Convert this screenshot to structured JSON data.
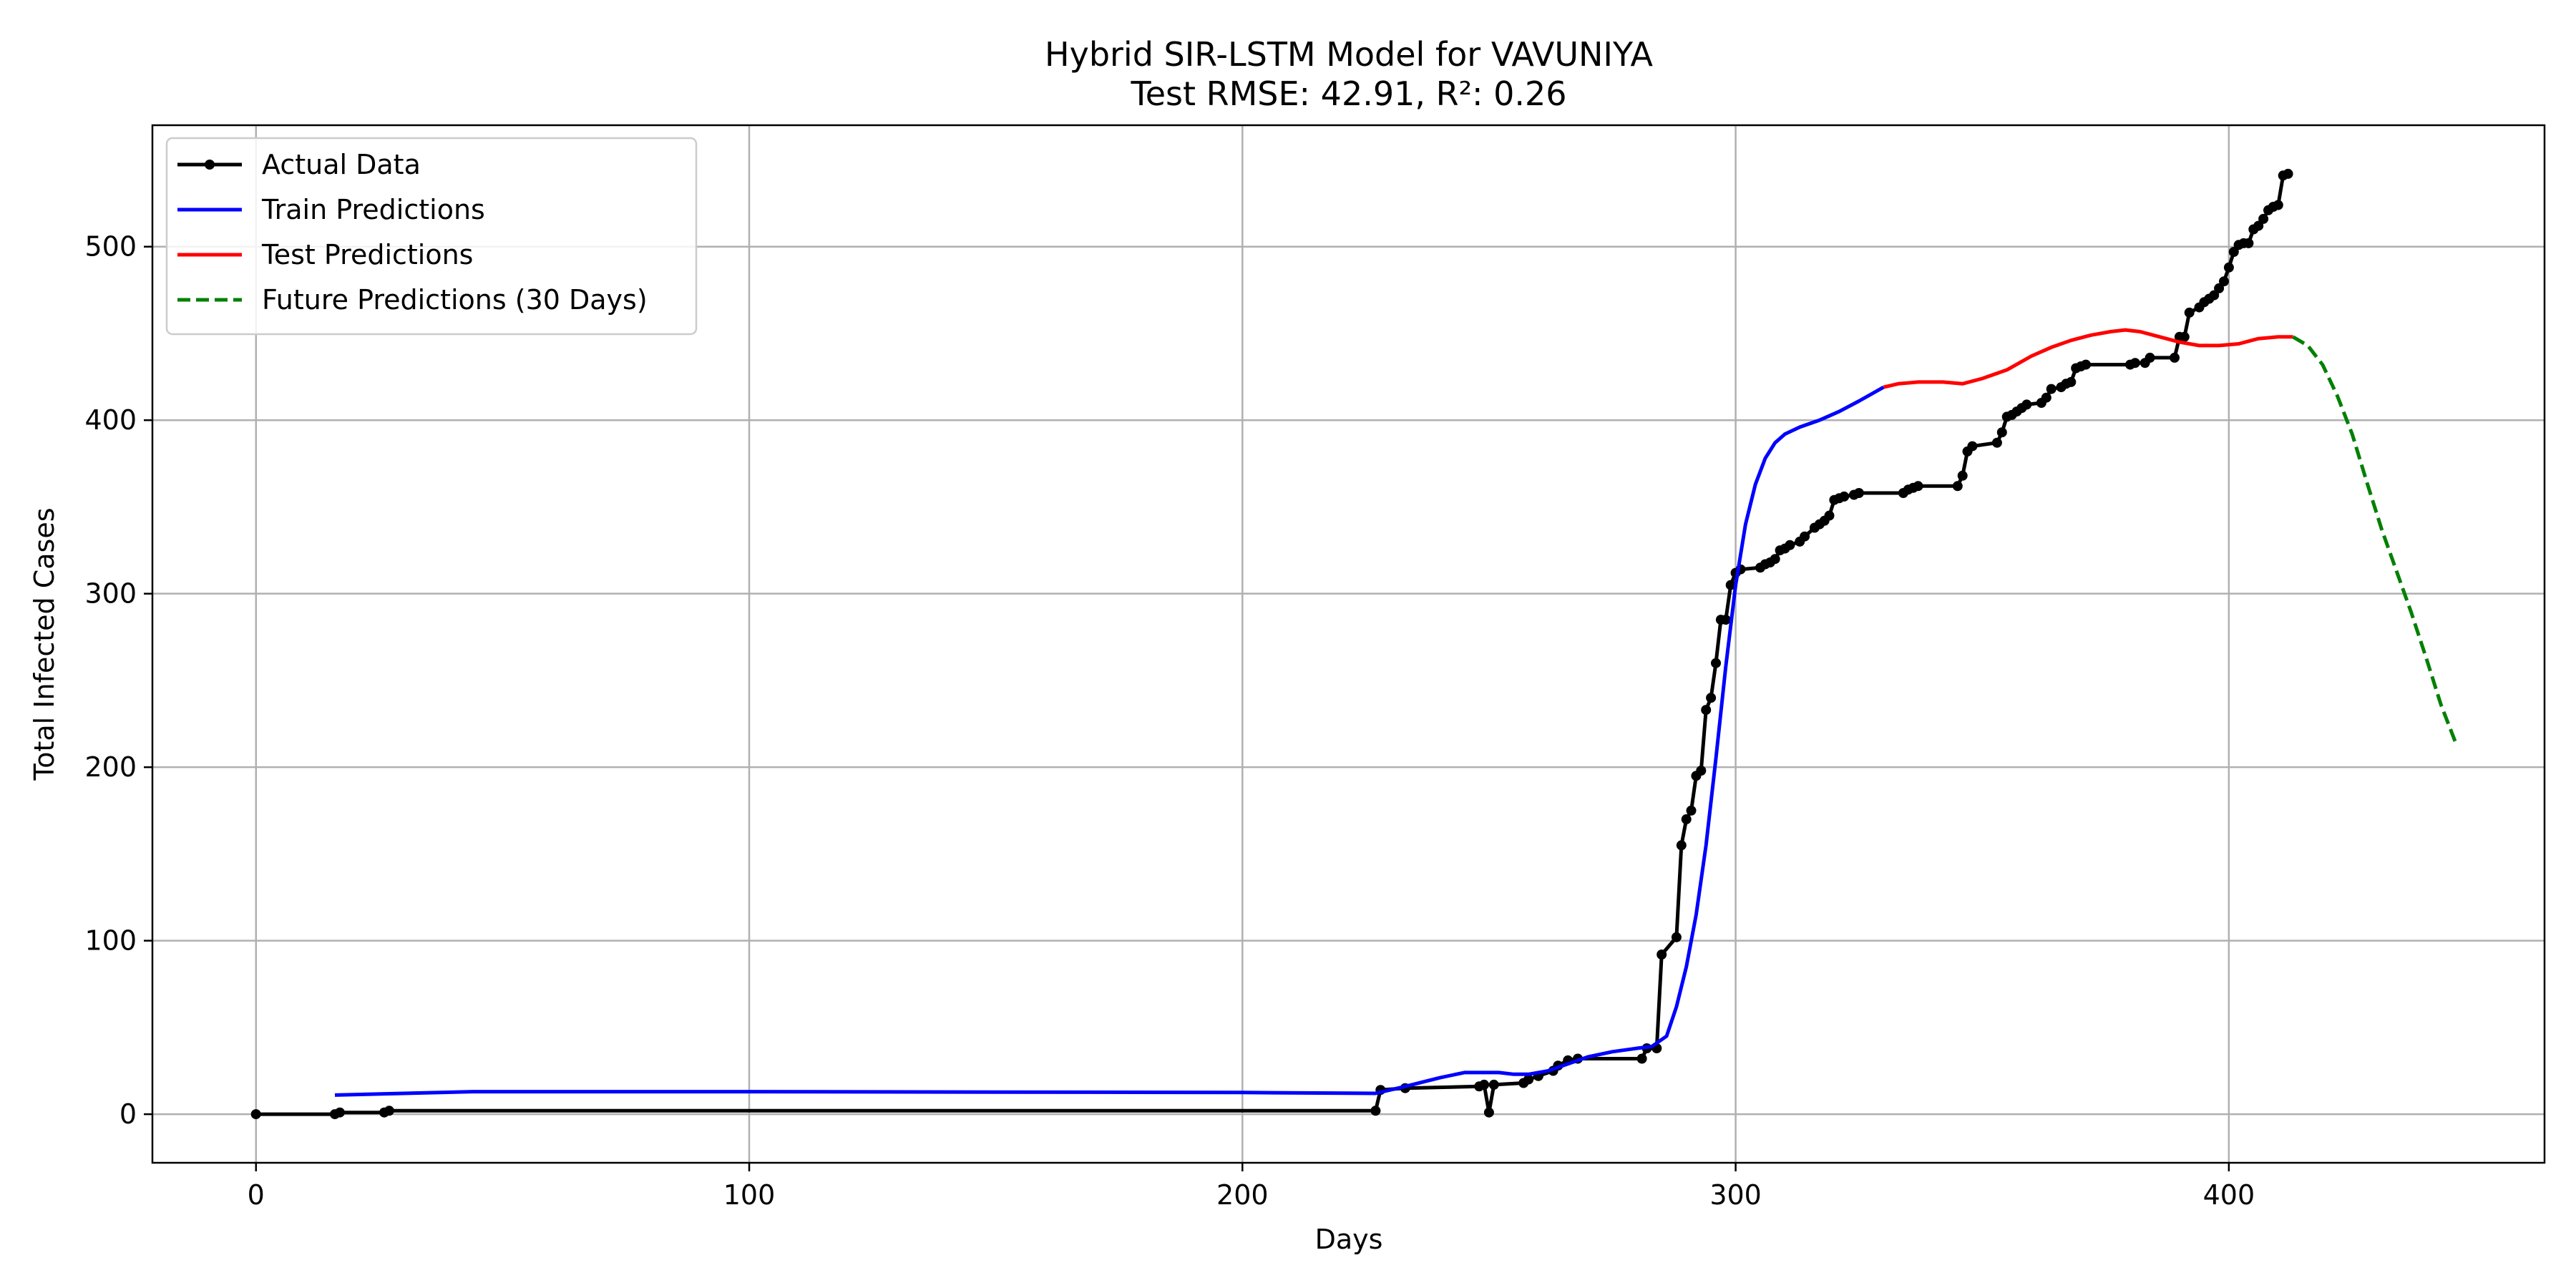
{
  "chart_data": {
    "type": "line",
    "title": "Hybrid SIR-LSTM Model for VAVUNIYA",
    "subtitle": "Test RMSE: 42.91, R²: 0.26",
    "xlabel": "Days",
    "ylabel": "Total Infected Cases",
    "xlim": [
      -21,
      464
    ],
    "ylim": [
      -28,
      570
    ],
    "xticks": [
      0,
      100,
      200,
      300,
      400
    ],
    "yticks": [
      0,
      100,
      200,
      300,
      400,
      500
    ],
    "grid": true,
    "legend_position": "top-left",
    "series": [
      {
        "name": "Actual Data",
        "color": "#000000",
        "style": "solid-markers",
        "points": [
          [
            0,
            0
          ],
          [
            16,
            0
          ],
          [
            17,
            1
          ],
          [
            26,
            1
          ],
          [
            27,
            2
          ],
          [
            227,
            2
          ],
          [
            228,
            14
          ],
          [
            233,
            15
          ],
          [
            248,
            16
          ],
          [
            249,
            17
          ],
          [
            250,
            1
          ],
          [
            251,
            17
          ],
          [
            257,
            18
          ],
          [
            258,
            20
          ],
          [
            260,
            22
          ],
          [
            263,
            25
          ],
          [
            264,
            28
          ],
          [
            266,
            31
          ],
          [
            268,
            32
          ],
          [
            281,
            32
          ],
          [
            282,
            38
          ],
          [
            284,
            38
          ],
          [
            285,
            92
          ],
          [
            288,
            102
          ],
          [
            289,
            155
          ],
          [
            290,
            170
          ],
          [
            291,
            175
          ],
          [
            292,
            195
          ],
          [
            293,
            198
          ],
          [
            294,
            233
          ],
          [
            295,
            240
          ],
          [
            296,
            260
          ],
          [
            297,
            285
          ],
          [
            298,
            285
          ],
          [
            299,
            305
          ],
          [
            300,
            312
          ],
          [
            301,
            314
          ],
          [
            305,
            315
          ],
          [
            306,
            317
          ],
          [
            307,
            318
          ],
          [
            308,
            320
          ],
          [
            309,
            325
          ],
          [
            310,
            326
          ],
          [
            311,
            328
          ],
          [
            313,
            330
          ],
          [
            314,
            333
          ],
          [
            316,
            338
          ],
          [
            317,
            340
          ],
          [
            318,
            342
          ],
          [
            319,
            345
          ],
          [
            320,
            354
          ],
          [
            321,
            355
          ],
          [
            322,
            356
          ],
          [
            324,
            357
          ],
          [
            325,
            358
          ],
          [
            334,
            358
          ],
          [
            335,
            360
          ],
          [
            336,
            361
          ],
          [
            337,
            362
          ],
          [
            345,
            362
          ],
          [
            346,
            368
          ],
          [
            347,
            382
          ],
          [
            348,
            385
          ],
          [
            353,
            387
          ],
          [
            354,
            393
          ],
          [
            355,
            402
          ],
          [
            356,
            403
          ],
          [
            357,
            405
          ],
          [
            358,
            407
          ],
          [
            359,
            409
          ],
          [
            362,
            410
          ],
          [
            363,
            413
          ],
          [
            364,
            418
          ],
          [
            366,
            419
          ],
          [
            367,
            421
          ],
          [
            368,
            422
          ],
          [
            369,
            430
          ],
          [
            370,
            431
          ],
          [
            371,
            432
          ],
          [
            380,
            432
          ],
          [
            381,
            433
          ],
          [
            383,
            433
          ],
          [
            384,
            436
          ],
          [
            389,
            436
          ],
          [
            390,
            448
          ],
          [
            391,
            448
          ],
          [
            392,
            462
          ],
          [
            394,
            465
          ],
          [
            395,
            468
          ],
          [
            396,
            470
          ],
          [
            397,
            472
          ],
          [
            398,
            476
          ],
          [
            399,
            480
          ],
          [
            400,
            488
          ],
          [
            401,
            497
          ],
          [
            402,
            501
          ],
          [
            403,
            502
          ],
          [
            404,
            502
          ],
          [
            405,
            510
          ],
          [
            406,
            512
          ],
          [
            407,
            516
          ],
          [
            408,
            521
          ],
          [
            409,
            523
          ],
          [
            410,
            524
          ],
          [
            411,
            541
          ],
          [
            412,
            542
          ]
        ]
      },
      {
        "name": "Train Predictions",
        "color": "#0000ff",
        "style": "solid",
        "points": [
          [
            16,
            11
          ],
          [
            44,
            13
          ],
          [
            100,
            13
          ],
          [
            200,
            12.5
          ],
          [
            227,
            12
          ],
          [
            233,
            16
          ],
          [
            240,
            21
          ],
          [
            245,
            24
          ],
          [
            252,
            24
          ],
          [
            255,
            23
          ],
          [
            258,
            23
          ],
          [
            262,
            25
          ],
          [
            266,
            29
          ],
          [
            270,
            33
          ],
          [
            275,
            36
          ],
          [
            280,
            38
          ],
          [
            283,
            39
          ],
          [
            286,
            45
          ],
          [
            288,
            62
          ],
          [
            290,
            85
          ],
          [
            292,
            115
          ],
          [
            294,
            155
          ],
          [
            296,
            205
          ],
          [
            298,
            258
          ],
          [
            300,
            305
          ],
          [
            302,
            340
          ],
          [
            304,
            363
          ],
          [
            306,
            378
          ],
          [
            308,
            387
          ],
          [
            310,
            392
          ],
          [
            313,
            396
          ],
          [
            317,
            400
          ],
          [
            321,
            405
          ],
          [
            325,
            411
          ],
          [
            330,
            419
          ]
        ]
      },
      {
        "name": "Test Predictions",
        "color": "#ff0000",
        "style": "solid",
        "points": [
          [
            330,
            419
          ],
          [
            333,
            421
          ],
          [
            337,
            422
          ],
          [
            342,
            422
          ],
          [
            346,
            421
          ],
          [
            350,
            424
          ],
          [
            355,
            429
          ],
          [
            360,
            437
          ],
          [
            364,
            442
          ],
          [
            368,
            446
          ],
          [
            372,
            449
          ],
          [
            376,
            451
          ],
          [
            379,
            452
          ],
          [
            382,
            451
          ],
          [
            386,
            448
          ],
          [
            390,
            445
          ],
          [
            394,
            443
          ],
          [
            398,
            443
          ],
          [
            402,
            444
          ],
          [
            406,
            447
          ],
          [
            410,
            448
          ],
          [
            413,
            448
          ]
        ]
      },
      {
        "name": "Future Predictions (30 Days)",
        "color": "#008000",
        "style": "dashed",
        "points": [
          [
            413,
            448
          ],
          [
            416,
            443
          ],
          [
            419,
            432
          ],
          [
            422,
            414
          ],
          [
            425,
            392
          ],
          [
            428,
            364
          ],
          [
            431,
            337
          ],
          [
            434,
            313
          ],
          [
            437,
            289
          ],
          [
            440,
            263
          ],
          [
            443,
            236
          ],
          [
            446,
            214
          ]
        ]
      }
    ]
  }
}
